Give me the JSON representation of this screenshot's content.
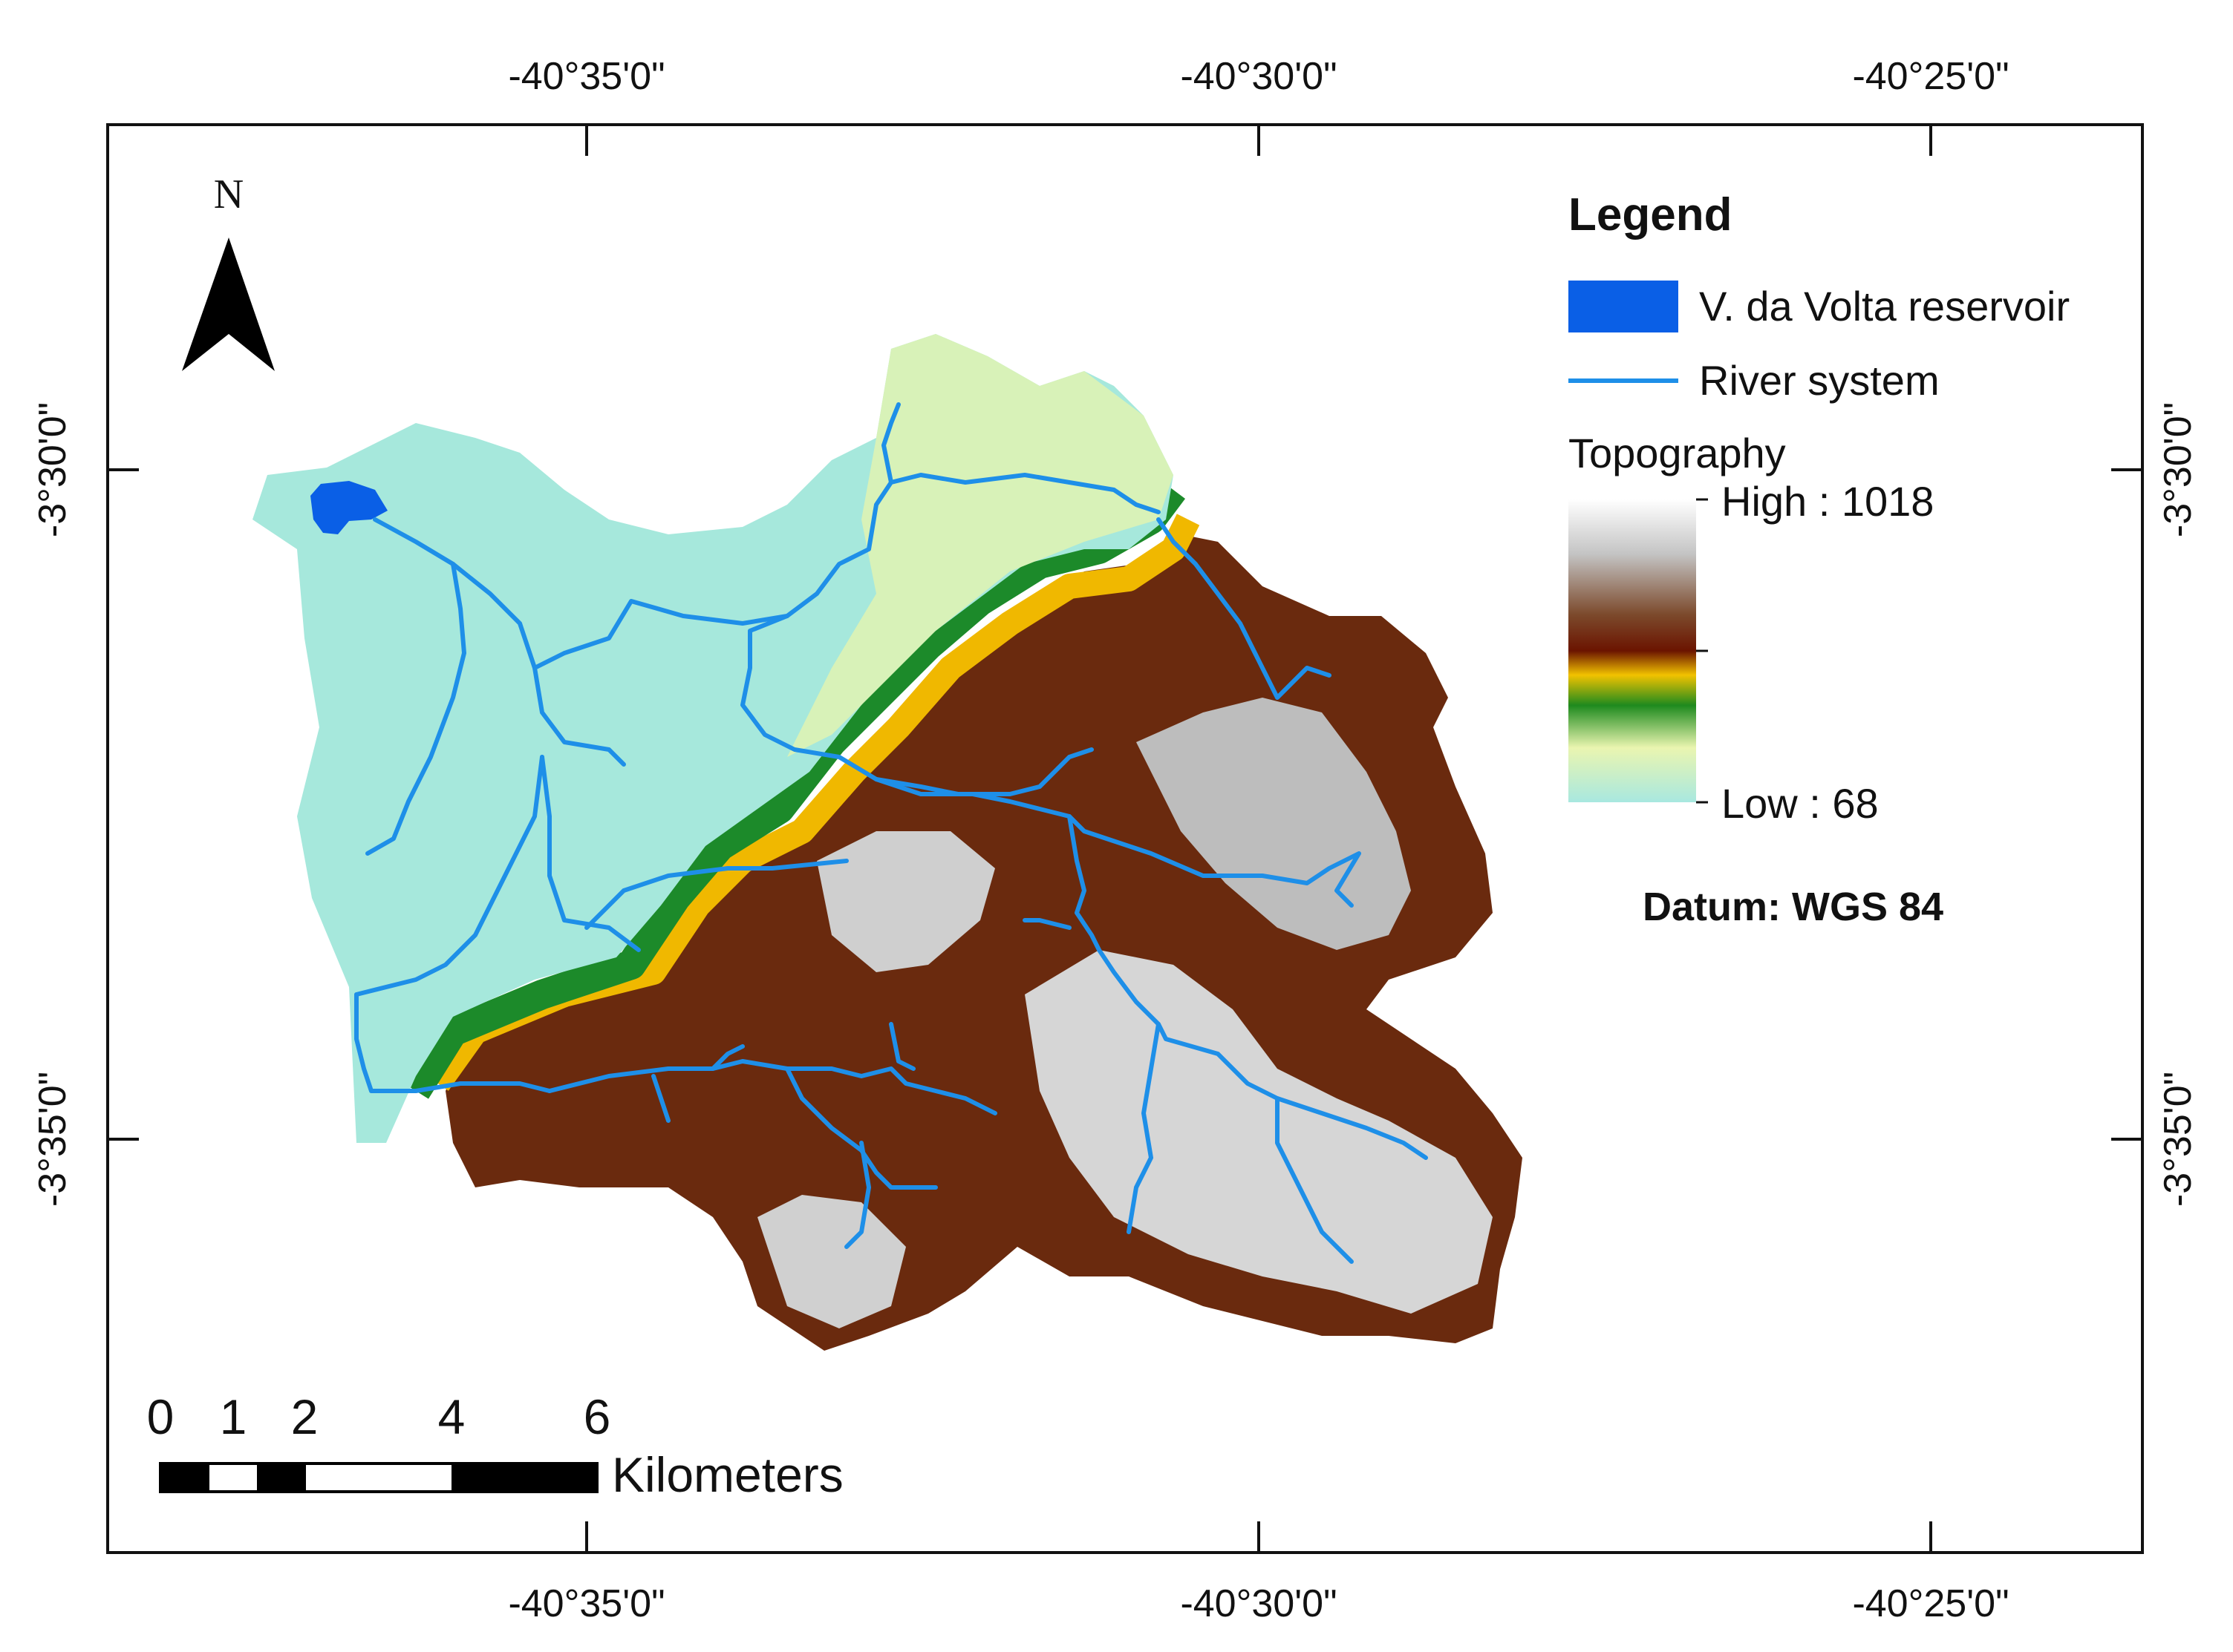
{
  "map": {
    "top_labels": [
      "-40°35'0\"",
      "-40°30'0\"",
      "-40°25'0\""
    ],
    "bottom_labels": [
      "-40°35'0\"",
      "-40°30'0\"",
      "-40°25'0\""
    ],
    "left_labels": [
      "-3°30'0\"",
      "-3°35'0\""
    ],
    "right_labels": [
      "-3°30'0\"",
      "-3°35'0\""
    ],
    "north_label": "N"
  },
  "legend": {
    "title": "Legend",
    "reservoir_label": "V. da Volta reservoir",
    "river_label": "River system",
    "topography_label": "Topography",
    "high_label": "High : 1018",
    "low_label": "Low : 68",
    "datum": "Datum: WGS 84",
    "colors": {
      "reservoir": "#0a5fe6",
      "river": "#1e8fe8",
      "ramp": [
        "#ffffff",
        "#b8b8b8",
        "#7a4a2a",
        "#6a1a00",
        "#f0c000",
        "#1e8a1e",
        "#f0f0b0",
        "#a8e8e0"
      ]
    }
  },
  "scale_bar": {
    "ticks": [
      "0",
      "1",
      "2",
      "4",
      "6"
    ],
    "unit": "Kilometers"
  }
}
